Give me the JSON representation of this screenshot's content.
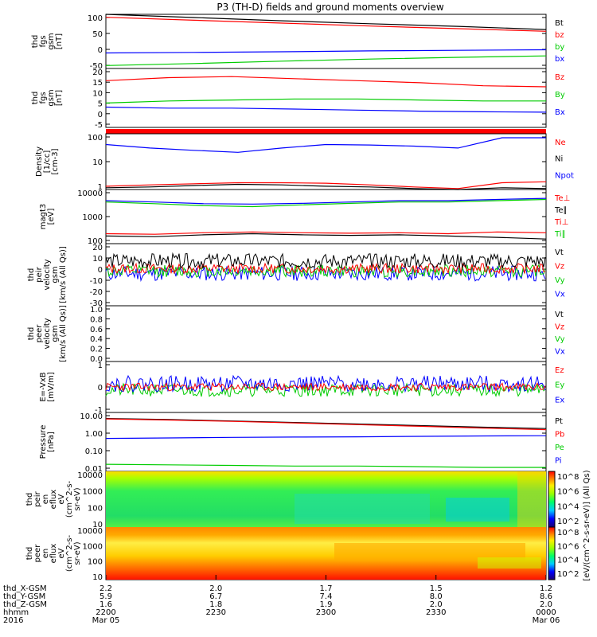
{
  "title": "P3 (TH-D) fields and ground moments overview",
  "chart_data": {
    "type": "line",
    "title": "P3 (TH-D) fields and ground moments overview",
    "panels": [
      {
        "id": "fgs",
        "ylabel": [
          "thd",
          "fgs",
          "gsm",
          "[nT]"
        ],
        "yticks": [
          "100",
          "50",
          "0",
          "-50"
        ],
        "ylim": [
          -75,
          110
        ],
        "legend": [
          {
            "text": "Bt",
            "color": "#000000"
          },
          {
            "text": "bz",
            "color": "#ff0000"
          },
          {
            "text": "by",
            "color": "#00cc00"
          },
          {
            "text": "bx",
            "color": "#0000ff"
          }
        ],
        "series": [
          {
            "color": "#000000",
            "values": [
              110,
              99,
              88,
              78,
              69,
              58
            ]
          },
          {
            "color": "#ff0000",
            "values": [
              100,
              90,
              80,
              70,
              61,
              52
            ]
          },
          {
            "color": "#00cc00",
            "values": [
              -65,
              -58,
              -50,
              -43,
              -37,
              -32
            ]
          },
          {
            "color": "#0000ff",
            "values": [
              -22,
              -20,
              -18,
              -15,
              -13,
              -11
            ]
          }
        ]
      },
      {
        "id": "fgs_gsm",
        "ylabel": [
          "thd",
          "fgs",
          "gsm",
          "[nT]"
        ],
        "yticks": [
          "20",
          "15",
          "10",
          "5",
          "0",
          "-5"
        ],
        "ylim": [
          -8,
          21
        ],
        "legend": [
          {
            "text": "Bz",
            "color": "#ff0000"
          },
          {
            "text": "By",
            "color": "#00cc00"
          },
          {
            "text": "Bx",
            "color": "#0000ff"
          }
        ],
        "series": [
          {
            "color": "#ff0000",
            "values": [
              15,
              16.5,
              17,
              16,
              15,
              14,
              12.5,
              12
            ]
          },
          {
            "color": "#00cc00",
            "values": [
              4,
              5,
              5.5,
              6,
              6,
              5.5,
              5,
              5
            ]
          },
          {
            "color": "#0000ff",
            "values": [
              2,
              1.5,
              1.5,
              1,
              0.5,
              0,
              -0.3,
              -0.5
            ]
          }
        ]
      },
      {
        "id": "density",
        "ylabel": [
          "Density",
          "[1/cc]",
          "[cm-3]"
        ],
        "yticks": [
          "100",
          "10",
          "1"
        ],
        "ylim": [
          1,
          300
        ],
        "log": true,
        "legend": [
          {
            "text": "Ne",
            "color": "#ff0000"
          },
          {
            "text": "Ni",
            "color": "#000000"
          },
          {
            "text": "Npot",
            "color": "#0000ff"
          }
        ],
        "series": [
          {
            "color": "#0000ff",
            "values": [
              100,
              70,
              55,
              45,
              70,
              100,
              95,
              85,
              70,
              200,
              200
            ]
          },
          {
            "color": "#ff0000",
            "values": [
              1.4,
              1.6,
              1.8,
              2.0,
              2.0,
              1.9,
              1.6,
              1.3,
              1.1,
              2.0,
              2.2
            ]
          },
          {
            "color": "#000000",
            "values": [
              1.2,
              1.3,
              1.5,
              1.7,
              1.6,
              1.4,
              1.3,
              1.1,
              1.0,
              1.2,
              1.1
            ]
          }
        ]
      },
      {
        "id": "magt3",
        "ylabel": [
          "magt3",
          "[eV]"
        ],
        "yticks": [
          "10000",
          "1000",
          "100"
        ],
        "ylim": [
          30,
          12000
        ],
        "log": true,
        "legend": [
          {
            "text": "Te⊥",
            "color": "#ff0000"
          },
          {
            "text": "Te∥",
            "color": "#000000"
          },
          {
            "text": "Ti⊥",
            "color": "#ff0000"
          },
          {
            "text": "Ti∥",
            "color": "#00cc00"
          }
        ],
        "series": [
          {
            "color": "#0000ff",
            "values": [
              3500,
              3000,
              2500,
              2400,
              2600,
              3000,
              3500,
              3500,
              4000,
              4500
            ]
          },
          {
            "color": "#00cc00",
            "values": [
              3000,
              2500,
              2000,
              1800,
              2200,
              2600,
              3000,
              3000,
              3500,
              4000
            ]
          },
          {
            "color": "#ff0000",
            "values": [
              90,
              85,
              100,
              110,
              100,
              95,
              100,
              90,
              110,
              100
            ]
          },
          {
            "color": "#000000",
            "values": [
              70,
              65,
              80,
              90,
              80,
              75,
              80,
              70,
              60,
              50
            ]
          }
        ]
      },
      {
        "id": "peir",
        "ylabel": [
          "thd",
          "peir",
          "velocity",
          "gsm",
          "[km/s (All Qs)]"
        ],
        "yticks": [
          "20",
          "10",
          "0",
          "-10",
          "-20",
          "-30"
        ],
        "ylim": [
          -30,
          20
        ],
        "legend": [
          {
            "text": "Vt",
            "color": "#000000"
          },
          {
            "text": "Vz",
            "color": "#ff0000"
          },
          {
            "text": "Vy",
            "color": "#00cc00"
          },
          {
            "text": "Vx",
            "color": "#0000ff"
          }
        ]
      },
      {
        "id": "peer",
        "ylabel": [
          "thd",
          "peer",
          "velocity",
          "gsm",
          "[km/s (All Qs)]"
        ],
        "yticks": [
          "1.0",
          "0.8",
          "0.6",
          "0.4",
          "0.2",
          "0.0"
        ],
        "ylim": [
          0,
          1
        ],
        "legend": [
          {
            "text": "Vt",
            "color": "#000000"
          },
          {
            "text": "Vz",
            "color": "#ff0000"
          },
          {
            "text": "Vy",
            "color": "#00cc00"
          },
          {
            "text": "Vx",
            "color": "#0000ff"
          }
        ]
      },
      {
        "id": "efield",
        "ylabel": [
          "E=-VxB",
          "[mV/m]"
        ],
        "yticks": [
          "1",
          "0",
          "-1"
        ],
        "ylim": [
          -1.6,
          1.6
        ],
        "legend": [
          {
            "text": "Ez",
            "color": "#ff0000"
          },
          {
            "text": "Ey",
            "color": "#00cc00"
          },
          {
            "text": "Ex",
            "color": "#0000ff"
          }
        ]
      },
      {
        "id": "pressure",
        "ylabel": [
          "Pressure",
          "[nPa]"
        ],
        "yticks": [
          "10.00",
          "1.00",
          "0.10",
          "0.01"
        ],
        "ylim": [
          0.006,
          12
        ],
        "log": true,
        "legend": [
          {
            "text": "Pt",
            "color": "#000000"
          },
          {
            "text": "Pb",
            "color": "#ff0000"
          },
          {
            "text": "Pe",
            "color": "#00cc00"
          },
          {
            "text": "Pi",
            "color": "#0000ff"
          }
        ],
        "series": [
          {
            "color": "#000000",
            "values": [
              5.5,
              4.8,
              4.0,
              3.3,
              2.7,
              2.2,
              1.8,
              1.5
            ]
          },
          {
            "color": "#ff0000",
            "values": [
              5.2,
              4.5,
              3.8,
              3.1,
              2.5,
              2.0,
              1.6,
              1.3
            ]
          },
          {
            "color": "#0000ff",
            "values": [
              0.42,
              0.45,
              0.48,
              0.5,
              0.52,
              0.55,
              0.58,
              0.6
            ]
          },
          {
            "color": "#00cc00",
            "values": [
              0.015,
              0.014,
              0.013,
              0.012,
              0.012,
              0.011,
              0.01,
              0.01
            ]
          }
        ]
      },
      {
        "id": "peir_eflux",
        "ylabel": [
          "thd",
          "peir",
          "en",
          "eflux",
          "eV",
          "(cm^2-s-",
          "sr-eV)"
        ],
        "yticks": [
          "10000",
          "1000",
          "100",
          "10"
        ],
        "colorbar": [
          "10^8",
          "10^6",
          "10^4",
          "10^2"
        ]
      },
      {
        "id": "peer_eflux",
        "ylabel": [
          "thd",
          "peer",
          "en",
          "eflux",
          "eV",
          "(cm^2-s-",
          "sr-eV)"
        ],
        "yticks": [
          "10000",
          "1000",
          "100",
          "10"
        ],
        "colorbar": [
          "10^8",
          "10^6",
          "10^4",
          "10^2"
        ]
      }
    ],
    "colorbar_label": "[eV/(cm^2-s-sr-eV)] (All Qs)",
    "x_axis": {
      "row_labels": [
        "thd_X-GSM",
        "thd_Y-GSM",
        "thd_Z-GSM",
        "hhmm",
        "2016"
      ],
      "columns": [
        {
          "values": [
            "2.2",
            "5.9",
            "1.6",
            "2200",
            "Mar 05"
          ]
        },
        {
          "values": [
            "2.0",
            "6.7",
            "1.8",
            "2230",
            ""
          ]
        },
        {
          "values": [
            "1.7",
            "7.4",
            "1.9",
            "2300",
            ""
          ]
        },
        {
          "values": [
            "1.5",
            "8.0",
            "2.0",
            "2330",
            ""
          ]
        },
        {
          "values": [
            "1.2",
            "8.6",
            "2.0",
            "0000",
            "Mar 06"
          ]
        }
      ]
    }
  }
}
